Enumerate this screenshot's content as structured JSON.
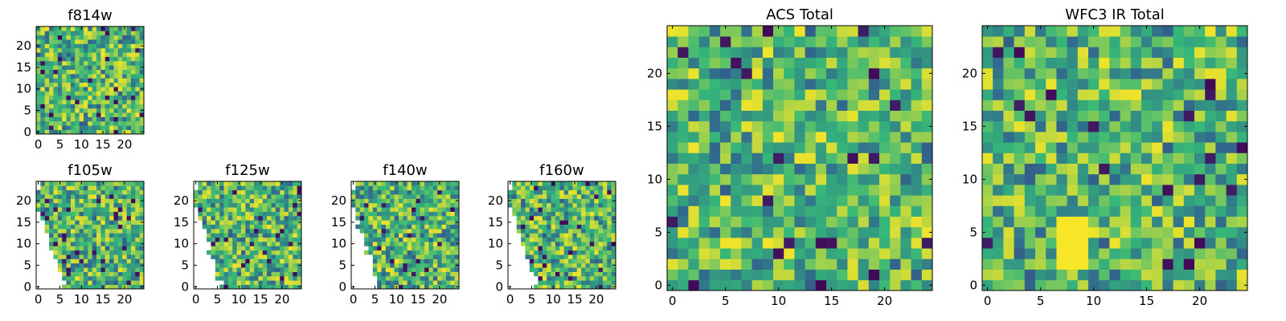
{
  "figure": {
    "colormap": "viridis",
    "colormap_stops": [
      "#440154",
      "#31688e",
      "#35b779",
      "#fde725"
    ]
  },
  "chart_data": [
    {
      "id": "f814w",
      "type": "heatmap",
      "title": "f814w",
      "grid_size": 25,
      "xlim": [
        0,
        24
      ],
      "ylim": [
        0,
        24
      ],
      "xticks": [
        0,
        5,
        10,
        15,
        20
      ],
      "yticks": [
        0,
        5,
        10,
        15,
        20
      ],
      "xtick_labels": [
        "0",
        "5",
        "10",
        "15",
        "20"
      ],
      "ytick_labels": [
        "0",
        "5",
        "10",
        "15",
        "20"
      ],
      "value_range": [
        0,
        1
      ],
      "seed": 11,
      "coverage": "full",
      "dominant": "green-yellow noise"
    },
    {
      "id": "f105w",
      "type": "heatmap",
      "title": "f105w",
      "grid_size": 25,
      "xlim": [
        0,
        24
      ],
      "ylim": [
        0,
        24
      ],
      "xticks": [
        0,
        5,
        10,
        15,
        20
      ],
      "yticks": [
        0,
        5,
        10,
        15,
        20
      ],
      "xtick_labels": [
        "0",
        "5",
        "10",
        "15",
        "20"
      ],
      "ytick_labels": [
        "0",
        "5",
        "10",
        "15",
        "20"
      ],
      "value_range": [
        0,
        1
      ],
      "seed": 23,
      "coverage": "partial",
      "masked_region": "left wedge (NaN, white)"
    },
    {
      "id": "f125w",
      "type": "heatmap",
      "title": "f125w",
      "grid_size": 25,
      "xlim": [
        0,
        24
      ],
      "ylim": [
        0,
        24
      ],
      "xticks": [
        0,
        5,
        10,
        15,
        20
      ],
      "yticks": [
        0,
        5,
        10,
        15,
        20
      ],
      "xtick_labels": [
        "0",
        "5",
        "10",
        "15",
        "20"
      ],
      "ytick_labels": [
        "0",
        "5",
        "10",
        "15",
        "20"
      ],
      "value_range": [
        0,
        1
      ],
      "seed": 37,
      "coverage": "partial",
      "masked_region": "left wedge (NaN, white)"
    },
    {
      "id": "f140w",
      "type": "heatmap",
      "title": "f140w",
      "grid_size": 25,
      "xlim": [
        0,
        24
      ],
      "ylim": [
        0,
        24
      ],
      "xticks": [
        0,
        5,
        10,
        15,
        20
      ],
      "yticks": [
        0,
        5,
        10,
        15,
        20
      ],
      "xtick_labels": [
        "0",
        "5",
        "10",
        "15",
        "20"
      ],
      "ytick_labels": [
        "0",
        "5",
        "10",
        "15",
        "20"
      ],
      "value_range": [
        0,
        1
      ],
      "seed": 53,
      "coverage": "partial",
      "masked_region": "left wedge (NaN, white)"
    },
    {
      "id": "f160w",
      "type": "heatmap",
      "title": "f160w",
      "grid_size": 25,
      "xlim": [
        0,
        24
      ],
      "ylim": [
        0,
        24
      ],
      "xticks": [
        0,
        5,
        10,
        15,
        20
      ],
      "yticks": [
        0,
        5,
        10,
        15,
        20
      ],
      "xtick_labels": [
        "0",
        "5",
        "10",
        "15",
        "20"
      ],
      "ytick_labels": [
        "0",
        "5",
        "10",
        "15",
        "20"
      ],
      "value_range": [
        0,
        1
      ],
      "seed": 71,
      "coverage": "partial",
      "masked_region": "left wedge (NaN, white)"
    },
    {
      "id": "acs-total",
      "type": "heatmap",
      "title": "ACS Total",
      "grid_size": 25,
      "xlim": [
        0,
        24
      ],
      "ylim": [
        0,
        24
      ],
      "xticks": [
        0,
        5,
        10,
        15,
        20
      ],
      "yticks": [
        0,
        5,
        10,
        15,
        20
      ],
      "xtick_labels": [
        "0",
        "5",
        "10",
        "15",
        "20"
      ],
      "ytick_labels": [
        "0",
        "5",
        "10",
        "15",
        "20"
      ],
      "value_range": [
        0,
        1
      ],
      "seed": 97,
      "coverage": "full",
      "dominant": "green-yellow noise"
    },
    {
      "id": "wfc3-ir-total",
      "type": "heatmap",
      "title": "WFC3 IR Total",
      "grid_size": 25,
      "xlim": [
        0,
        24
      ],
      "ylim": [
        0,
        24
      ],
      "xticks": [
        0,
        5,
        10,
        15,
        20
      ],
      "yticks": [
        0,
        5,
        10,
        15,
        20
      ],
      "xtick_labels": [
        "0",
        "5",
        "10",
        "15",
        "20"
      ],
      "ytick_labels": [
        "0",
        "5",
        "10",
        "15",
        "20"
      ],
      "value_range": [
        0,
        1
      ],
      "seed": 131,
      "coverage": "full",
      "bright_feature": "yellow block near x=7-9, y=2-6"
    }
  ]
}
